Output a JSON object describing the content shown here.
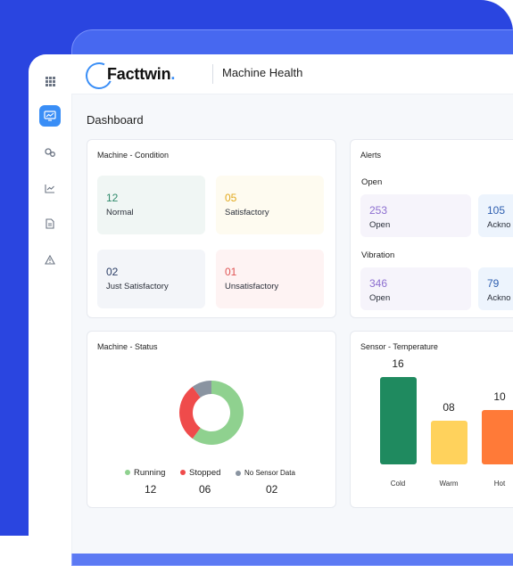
{
  "app": {
    "logo_text": "Facttwin",
    "logo_suffix": ".",
    "page_name": "Machine Health"
  },
  "dashboard": {
    "title": "Dashboard"
  },
  "sidebar": {
    "icons": [
      "grid-icon",
      "monitor-icon",
      "gears-icon",
      "line-chart-icon",
      "document-icon",
      "warning-icon"
    ],
    "active_index": 1
  },
  "machine_condition": {
    "title": "Machine - Condition",
    "tiles": [
      {
        "value": "12",
        "label": "Normal"
      },
      {
        "value": "05",
        "label": "Satisfactory"
      },
      {
        "value": "02",
        "label": "Just Satisfactory"
      },
      {
        "value": "01",
        "label": "Unsatisfactory"
      }
    ]
  },
  "alerts": {
    "title": "Alerts",
    "groups": [
      {
        "name": "Open",
        "items": [
          {
            "value": "253",
            "label": "Open"
          },
          {
            "value": "105",
            "label": "Ackno"
          }
        ]
      },
      {
        "name": "Vibration",
        "items": [
          {
            "value": "346",
            "label": "Open"
          },
          {
            "value": "79",
            "label": "Ackno"
          }
        ]
      }
    ]
  },
  "machine_status": {
    "title": "Machine - Status",
    "legend": [
      {
        "label": "Running",
        "value": "12",
        "color": "#8fd18f"
      },
      {
        "label": "Stopped",
        "value": "06",
        "color": "#ef4b4b"
      },
      {
        "label": "No Sensor Data",
        "value": "02",
        "color": "#8a94a1"
      }
    ]
  },
  "sensor_temperature": {
    "title": "Sensor - Temperature",
    "bars": [
      {
        "label": "Cold",
        "value": "16",
        "color": "#1f8a5f"
      },
      {
        "label": "Warm",
        "value": "08",
        "color": "#ffd25c"
      },
      {
        "label": "Hot",
        "value": "10",
        "color": "#ff7a38"
      }
    ]
  }
}
